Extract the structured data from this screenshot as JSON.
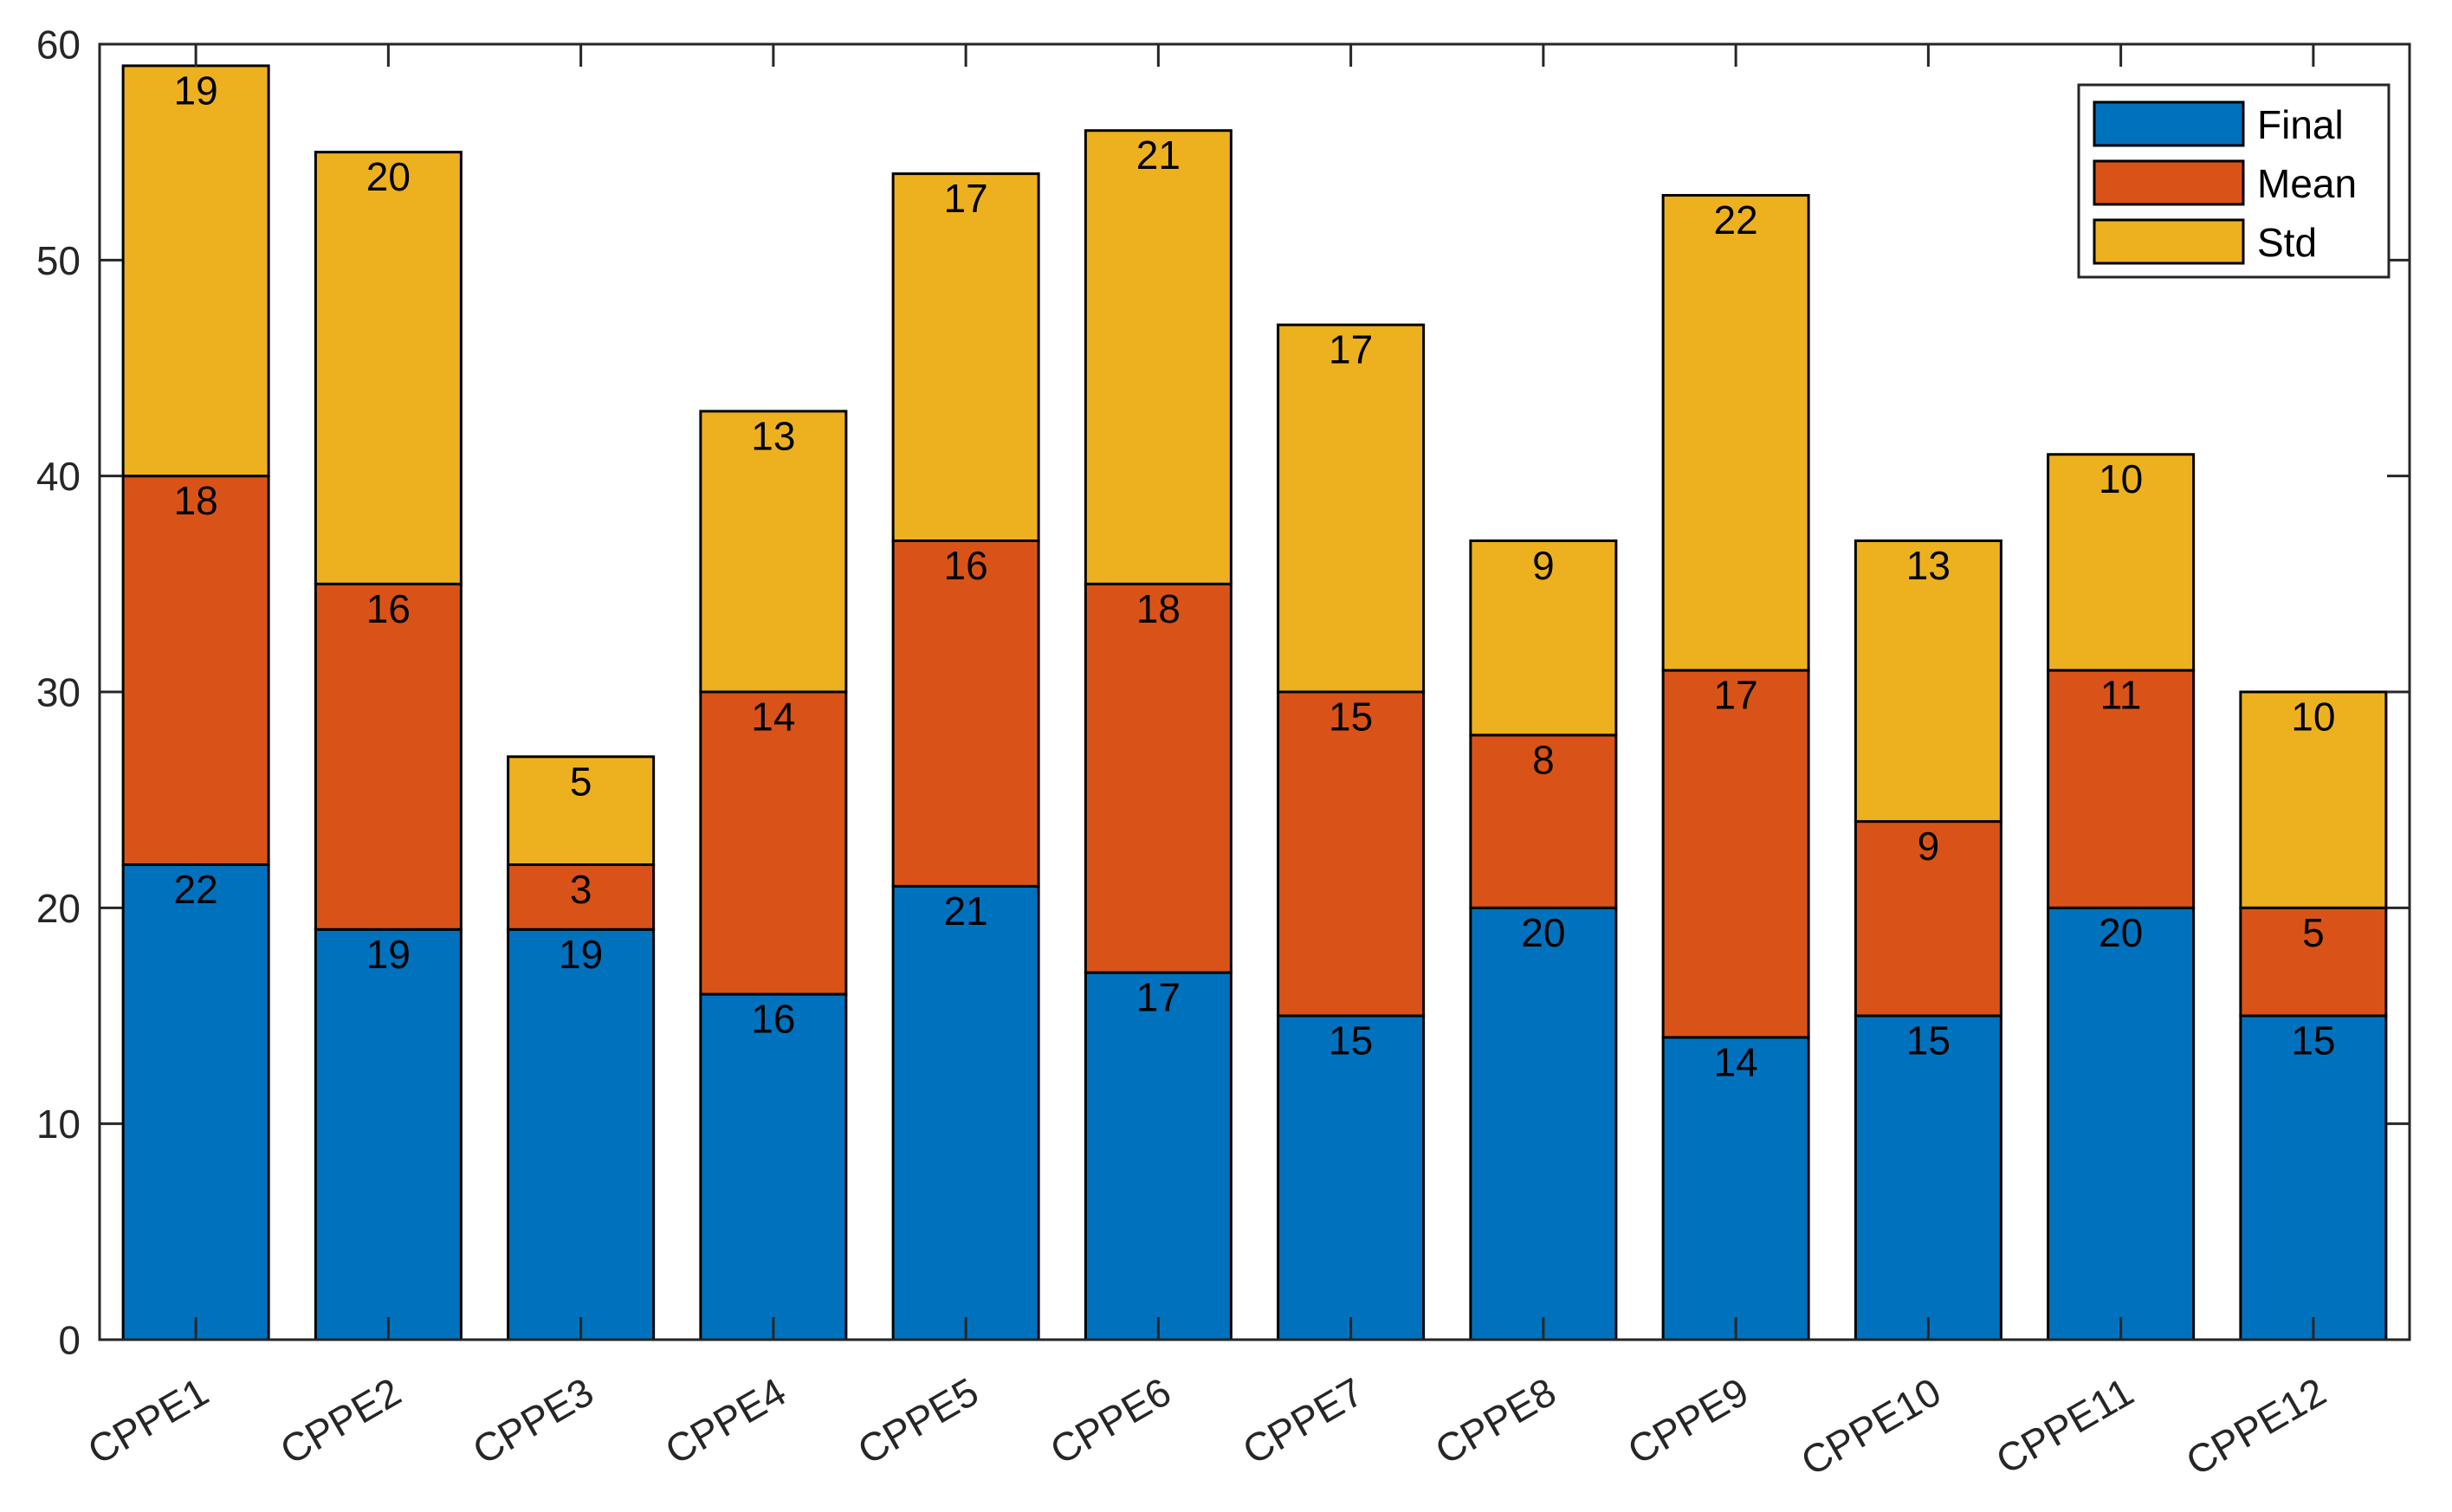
{
  "chart_data": {
    "type": "stacked-bar",
    "title": "",
    "xlabel": "",
    "ylabel": "",
    "ylim": [
      0,
      60
    ],
    "yticks": [
      0,
      10,
      20,
      30,
      40,
      50,
      60
    ],
    "ytick_labels": [
      "0",
      "10",
      "20",
      "30",
      "40",
      "50",
      "60"
    ],
    "grid": false,
    "legend_position": "top-right",
    "categories": [
      "CPPE1",
      "CPPE2",
      "CPPE3",
      "CPPE4",
      "CPPE5",
      "CPPE6",
      "CPPE7",
      "CPPE8",
      "CPPE9",
      "CPPE10",
      "CPPE11",
      "CPPE12"
    ],
    "series": [
      {
        "name": "Final",
        "color": "#0072BD",
        "values": [
          22,
          19,
          19,
          16,
          21,
          17,
          15,
          20,
          14,
          15,
          20,
          15
        ]
      },
      {
        "name": "Mean",
        "color": "#D95319",
        "values": [
          18,
          16,
          3,
          14,
          16,
          18,
          15,
          8,
          17,
          9,
          11,
          5
        ]
      },
      {
        "name": "Std",
        "color": "#EDB120",
        "values": [
          19,
          20,
          5,
          13,
          17,
          21,
          17,
          9,
          22,
          13,
          10,
          10
        ]
      }
    ]
  }
}
